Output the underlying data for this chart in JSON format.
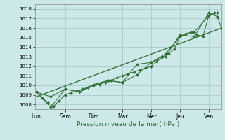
{
  "xlabel": "Pression niveau de la mer( hPa )",
  "background_color": "#cce8e8",
  "grid_color": "#aacccc",
  "line_color": "#2d6a2d",
  "ylim": [
    1007.5,
    1018.5
  ],
  "xlim": [
    -0.05,
    6.45
  ],
  "day_labels": [
    "Lun",
    "Sam",
    "Dim",
    "Mar",
    "Mer",
    "Jeu",
    "Ven"
  ],
  "day_positions": [
    0,
    1,
    2,
    3,
    4,
    5,
    6
  ],
  "yticks": [
    1008,
    1009,
    1010,
    1011,
    1012,
    1013,
    1014,
    1015,
    1016,
    1017,
    1018
  ],
  "series1_x": [
    0.0,
    0.2,
    0.4,
    0.6,
    0.8,
    1.0,
    1.2,
    1.4,
    1.6,
    1.8,
    2.0,
    2.2,
    2.4,
    2.6,
    2.8,
    3.0,
    3.2,
    3.4,
    3.6,
    3.8,
    4.0,
    4.2,
    4.4,
    4.6,
    4.8,
    5.0,
    5.2,
    5.4,
    5.6,
    5.8,
    6.0,
    6.2
  ],
  "series1_y": [
    1009.3,
    1008.7,
    1008.2,
    1007.8,
    1008.4,
    1009.0,
    1009.2,
    1009.4,
    1009.6,
    1009.8,
    1010.0,
    1010.1,
    1010.3,
    1010.5,
    1010.8,
    1011.0,
    1011.2,
    1011.4,
    1011.6,
    1011.8,
    1012.0,
    1012.5,
    1013.0,
    1013.3,
    1013.8,
    1015.1,
    1015.4,
    1015.6,
    1015.3,
    1015.1,
    1017.3,
    1017.6
  ],
  "series2_x": [
    0.0,
    0.5,
    1.0,
    1.5,
    2.0,
    2.5,
    3.0,
    3.5,
    4.0,
    4.5,
    5.0,
    5.5,
    6.0,
    6.3
  ],
  "series2_y": [
    1009.3,
    1007.7,
    1009.6,
    1009.3,
    1010.0,
    1010.5,
    1010.3,
    1011.1,
    1012.4,
    1013.3,
    1015.1,
    1015.6,
    1017.3,
    1017.6
  ],
  "series3_x": [
    0.0,
    0.5,
    1.0,
    1.5,
    2.0,
    2.5,
    3.0,
    3.5,
    4.0,
    4.5,
    5.0,
    5.5,
    6.0,
    6.3,
    6.45
  ],
  "series3_y": [
    1009.3,
    1008.8,
    1009.6,
    1009.3,
    1010.1,
    1010.5,
    1010.3,
    1012.2,
    1012.4,
    1013.0,
    1015.3,
    1015.1,
    1017.6,
    1017.2,
    1016.0
  ],
  "trend_x": [
    0.0,
    6.45
  ],
  "trend_y": [
    1008.8,
    1016.0
  ]
}
